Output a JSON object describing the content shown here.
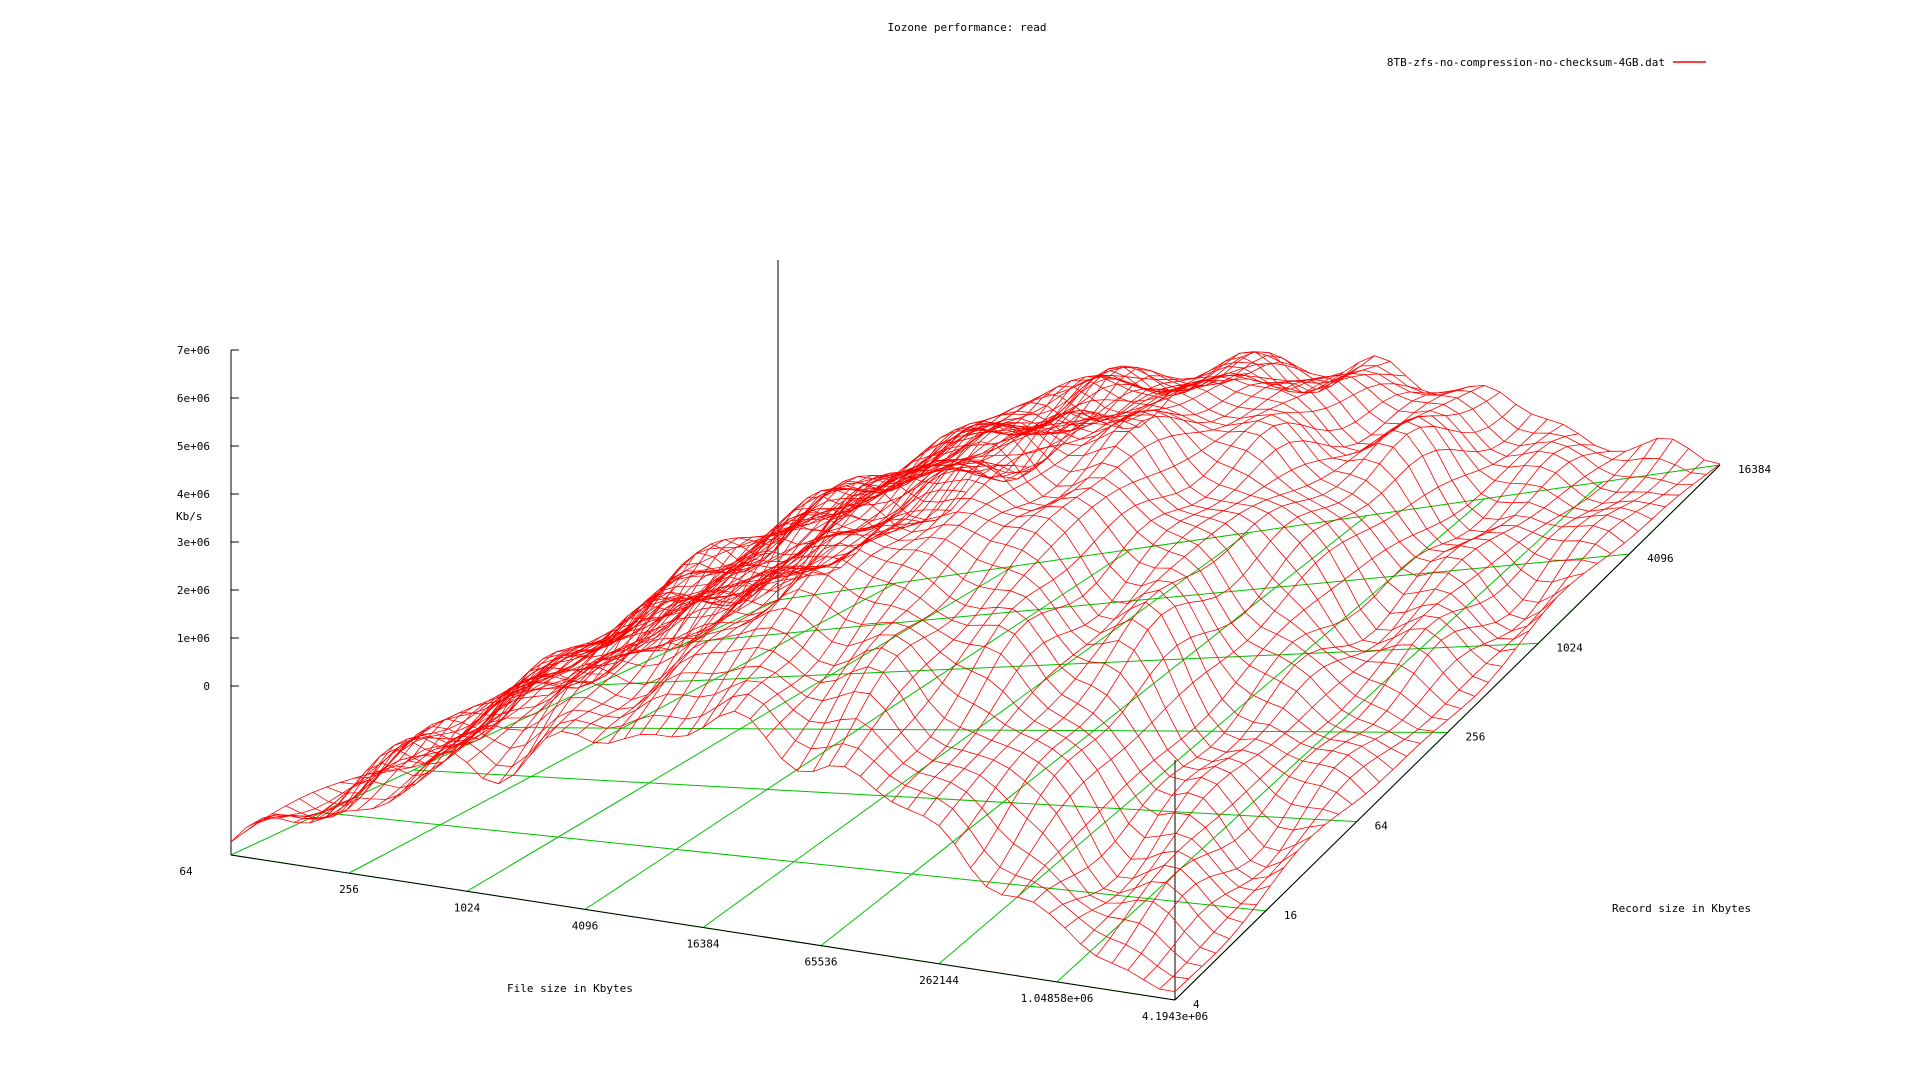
{
  "chart_data": {
    "type": "surface",
    "title": "Iozone performance: read",
    "legend": {
      "label": "8TB-zfs-no-compression-no-checksum-4GB.dat",
      "color": "#ff0000",
      "placement": "top-right"
    },
    "xlabel": "File size in Kbytes",
    "ylabel": "Record size in Kbytes",
    "zlabel": "Kb/s",
    "x_tick_labels": [
      "64",
      "256",
      "1024",
      "4096",
      "16384",
      "65536",
      "262144",
      "1.04858e+06",
      "4.1943e+06"
    ],
    "y_tick_labels": [
      "4",
      "16",
      "64",
      "256",
      "1024",
      "4096",
      "16384"
    ],
    "z_tick_labels": [
      "0",
      "1e+06",
      "2e+06",
      "3e+06",
      "4e+06",
      "5e+06",
      "6e+06",
      "7e+06"
    ],
    "x_scale": "log2",
    "y_scale": "log2",
    "zlim": [
      0,
      7000000
    ],
    "grid": "base-only",
    "colors": {
      "surface": "#ff0000",
      "base_grid": "#00c000",
      "axes": "#000000"
    },
    "surface_profile_file_axis": [
      {
        "file_size_kb": 64,
        "kbps": 400000
      },
      {
        "file_size_kb": 256,
        "kbps": 2000000
      },
      {
        "file_size_kb": 1024,
        "kbps": 3800000
      },
      {
        "file_size_kb": 4096,
        "kbps": 5000000
      },
      {
        "file_size_kb": 16384,
        "kbps": 6200000
      },
      {
        "file_size_kb": 65536,
        "kbps": 5600000
      },
      {
        "file_size_kb": 262144,
        "kbps": 4000000
      },
      {
        "file_size_kb": 1048576,
        "kbps": 1500000
      },
      {
        "file_size_kb": 4194304,
        "kbps": 400000
      }
    ]
  }
}
